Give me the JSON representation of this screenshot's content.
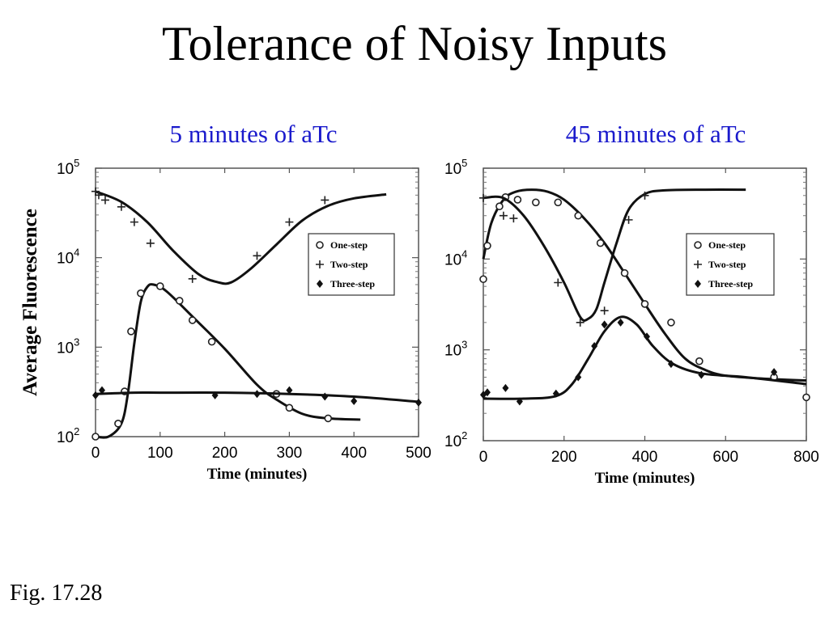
{
  "slide": {
    "title": "Tolerance of Noisy Inputs",
    "caption": "Fig. 17.28",
    "ylabel": "Average Fluorescence"
  },
  "legend": {
    "items": [
      {
        "label": "One-step",
        "marker": "circle"
      },
      {
        "label": "Two-step",
        "marker": "plus"
      },
      {
        "label": "Three-step",
        "marker": "diamond"
      }
    ]
  },
  "chart_data": [
    {
      "type": "scatter",
      "title": "5 minutes of aTc",
      "xlabel": "Time (minutes)",
      "ylabel": "Average Fluorescence",
      "xlim": [
        0,
        500
      ],
      "ylim_log10": [
        2,
        5
      ],
      "y_scale": "log",
      "xticks": [
        "0",
        "100",
        "200",
        "300",
        "400",
        "500"
      ],
      "yticks": [
        {
          "base": "10",
          "exp": "2"
        },
        {
          "base": "10",
          "exp": "3"
        },
        {
          "base": "10",
          "exp": "4"
        },
        {
          "base": "10",
          "exp": "5"
        }
      ],
      "legend_position": "right",
      "series": [
        {
          "name": "One-step",
          "marker": "circle",
          "x": [
            0,
            35,
            45,
            55,
            70,
            100,
            130,
            150,
            180,
            280,
            300,
            360
          ],
          "y": [
            100,
            140,
            320,
            1500,
            4000,
            4800,
            3300,
            2000,
            1150,
            300,
            210,
            160
          ],
          "fit": {
            "x": [
              0,
              20,
              40,
              50,
              60,
              70,
              80,
              90,
              110,
              150,
              200,
              250,
              280,
              320,
              360,
              410
            ],
            "y": [
              100,
              100,
              140,
              300,
              1100,
              3200,
              4700,
              5000,
              4200,
              2200,
              960,
              380,
              260,
              180,
              160,
              155
            ]
          }
        },
        {
          "name": "Two-step",
          "marker": "plus",
          "x": [
            0,
            5,
            15,
            40,
            60,
            85,
            150,
            250,
            300,
            355
          ],
          "y": [
            55000,
            50000,
            44000,
            37000,
            25000,
            14500,
            5800,
            10500,
            25000,
            44000
          ],
          "fit": {
            "x": [
              0,
              40,
              80,
              120,
              160,
              190,
              210,
              240,
              280,
              320,
              360,
              400,
              450
            ],
            "y": [
              55000,
              42000,
              25000,
              12000,
              6500,
              5300,
              5300,
              7500,
              14000,
              26000,
              38000,
              46000,
              51000
            ]
          }
        },
        {
          "name": "Three-step",
          "marker": "diamond",
          "x": [
            0,
            10,
            185,
            250,
            300,
            355,
            400,
            500
          ],
          "y": [
            290,
            330,
            290,
            300,
            330,
            280,
            250,
            240
          ],
          "fit": {
            "x": [
              0,
              60,
              100,
              200,
              300,
              400,
              500
            ],
            "y": [
              300,
              310,
              310,
              310,
              300,
              280,
              245
            ]
          }
        }
      ]
    },
    {
      "type": "scatter",
      "title": "45 minutes of aTc",
      "xlabel": "Time (minutes)",
      "ylabel": "Average Fluorescence",
      "xlim": [
        0,
        800
      ],
      "ylim_log10": [
        2,
        5
      ],
      "y_scale": "log",
      "xticks": [
        "0",
        "200",
        "400",
        "600",
        "800"
      ],
      "yticks": [
        {
          "base": "10",
          "exp": "2"
        },
        {
          "base": "10",
          "exp": "3"
        },
        {
          "base": "10",
          "exp": "4"
        },
        {
          "base": "10",
          "exp": "5"
        }
      ],
      "legend_position": "right",
      "series": [
        {
          "name": "One-step",
          "marker": "circle",
          "x": [
            0,
            10,
            40,
            55,
            85,
            130,
            185,
            235,
            290,
            350,
            400,
            465,
            535,
            720,
            800
          ],
          "y": [
            6000,
            14000,
            38000,
            48000,
            45000,
            42000,
            42000,
            30000,
            15000,
            7000,
            3200,
            2000,
            750,
            500,
            300
          ],
          "fit": {
            "x": [
              0,
              20,
              50,
              80,
              120,
              160,
              200,
              250,
              300,
              350,
              400,
              450,
              500,
              550,
              600,
              700,
              800
            ],
            "y": [
              10000,
              25000,
              45000,
              55000,
              58000,
              55000,
              45000,
              28000,
              15000,
              7000,
              3200,
              1500,
              800,
              600,
              520,
              480,
              460
            ]
          }
        },
        {
          "name": "Two-step",
          "marker": "plus",
          "x": [
            0,
            50,
            75,
            185,
            240,
            300,
            360,
            400
          ],
          "y": [
            47000,
            30000,
            28000,
            5500,
            2000,
            2700,
            27000,
            50000
          ],
          "fit": {
            "x": [
              0,
              50,
              100,
              150,
              200,
              240,
              260,
              280,
              300,
              330,
              360,
              400,
              450,
              550,
              650
            ],
            "y": [
              47000,
              47000,
              30000,
              14000,
              5500,
              2300,
              2200,
              2800,
              5500,
              15000,
              35000,
              52000,
              57000,
              58000,
              58000
            ]
          }
        },
        {
          "name": "Three-step",
          "marker": "diamond",
          "x": [
            0,
            10,
            55,
            90,
            180,
            235,
            275,
            300,
            340,
            405,
            465,
            540,
            720
          ],
          "y": [
            320,
            340,
            380,
            270,
            330,
            500,
            1100,
            1900,
            2000,
            1400,
            700,
            530,
            570
          ],
          "fit": {
            "x": [
              0,
              100,
              180,
              220,
              260,
              300,
              340,
              380,
              420,
              470,
              540,
              650,
              800
            ],
            "y": [
              290,
              290,
              310,
              420,
              800,
              1600,
              2300,
              1900,
              1100,
              700,
              550,
              500,
              420
            ]
          }
        }
      ]
    }
  ]
}
